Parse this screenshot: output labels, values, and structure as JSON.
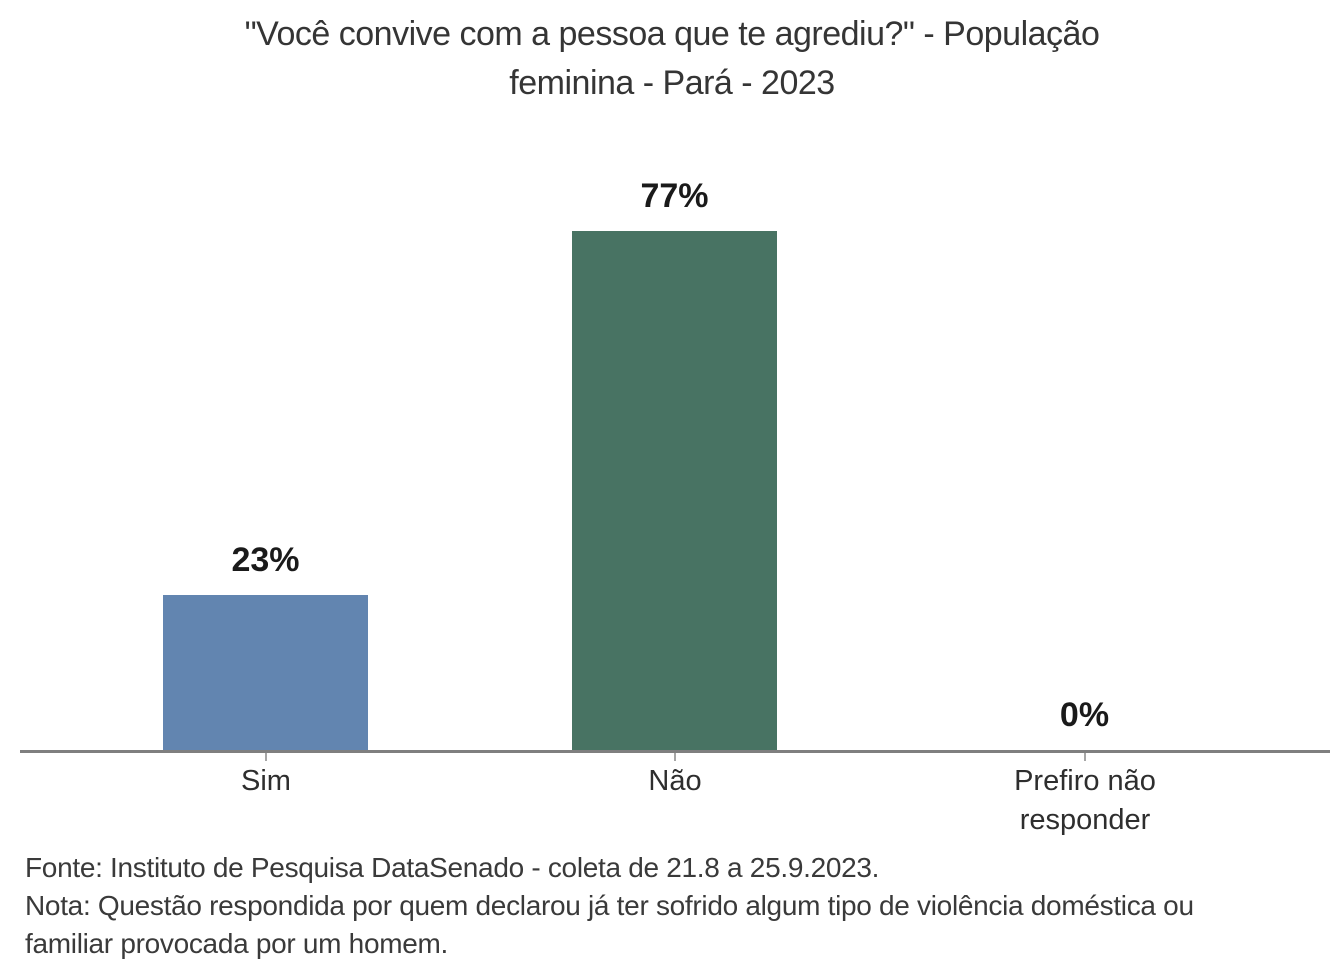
{
  "header": {
    "line1": "\"Você convive com a pessoa que te agrediu?\" - População",
    "line2": "feminina - Pará - 2023"
  },
  "chart_data": {
    "type": "bar",
    "title": "\"Você convive com a pessoa que te agrediu?\" - População feminina - Pará - 2023",
    "categories": [
      "Sim",
      "Não",
      "Prefiro não responder"
    ],
    "values": [
      23,
      77,
      0
    ],
    "value_labels": [
      "23%",
      "77%",
      "0%"
    ],
    "colors": [
      "#6285b0",
      "#487363",
      null
    ],
    "xlabel": "",
    "ylabel": "",
    "ylim": [
      0,
      100
    ],
    "grid": false,
    "legend": "none",
    "axis_line_color": "#7f7f7f",
    "tick_color": "#a6a6a6",
    "value_label_color": "#1a1a1a"
  },
  "footer": {
    "fonte": "Fonte: Instituto de Pesquisa DataSenado - coleta de 21.8 a 25.9.2023.",
    "nota": "Nota: Questão respondida por quem declarou já ter sofrido algum tipo de violência doméstica ou familiar provocada por um homem."
  }
}
